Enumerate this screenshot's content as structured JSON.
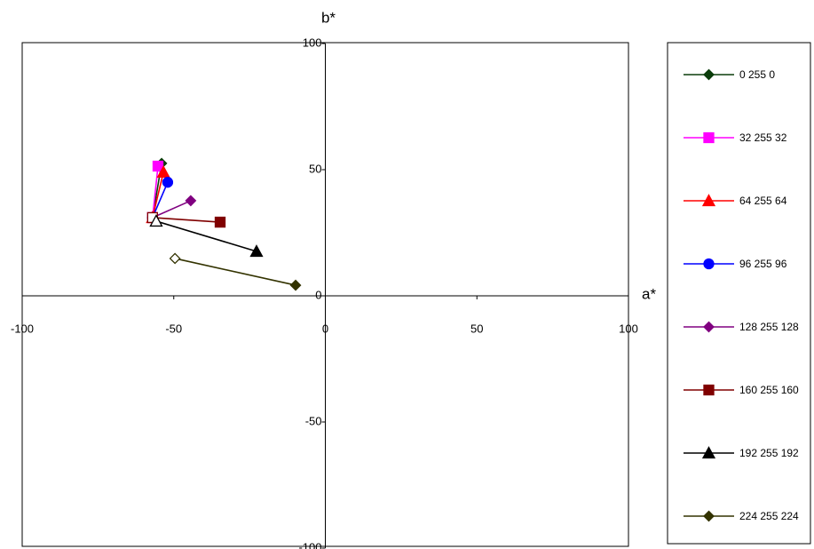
{
  "chart_data": {
    "type": "line",
    "x_label": "a*",
    "y_label": "b*",
    "xlim": [
      -100,
      100
    ],
    "ylim": [
      -100,
      100
    ],
    "xticks": [
      -100,
      -50,
      0,
      50,
      100
    ],
    "yticks": [
      -100,
      -50,
      0,
      50,
      100
    ],
    "grid": false,
    "legend": "right",
    "series": [
      {
        "name": "0 255 0",
        "color": "#0b3d0b",
        "marker": "diamond",
        "x": [
          -57,
          -54
        ],
        "values": [
          31,
          52.5
        ]
      },
      {
        "name": "32 255 32",
        "color": "#ff00ff",
        "marker": "square",
        "x": [
          -57,
          -55.2
        ],
        "values": [
          31,
          51.4
        ]
      },
      {
        "name": "64 255 64",
        "color": "#ff0000",
        "marker": "triangle",
        "x": [
          -57,
          -53.4
        ],
        "values": [
          31,
          49
        ]
      },
      {
        "name": "96 255 96",
        "color": "#0000ff",
        "marker": "circle",
        "x": [
          -57,
          -52
        ],
        "values": [
          31,
          45
        ]
      },
      {
        "name": "128 255 128",
        "color": "#800080",
        "marker": "diamond",
        "x": [
          -57,
          -44.4
        ],
        "values": [
          31,
          37.7
        ]
      },
      {
        "name": "160 255 160",
        "color": "#800000",
        "marker": "square",
        "x": [
          -57,
          -34.7
        ],
        "values": [
          31,
          29.2
        ]
      },
      {
        "name": "192 255 192",
        "color": "#000000",
        "marker": "triangle",
        "x": [
          -55.8,
          -22.7
        ],
        "values": [
          29.6,
          17.6
        ]
      },
      {
        "name": "224 255 224",
        "color": "#333300",
        "marker": "diamond",
        "x": [
          -49.6,
          -9.8
        ],
        "values": [
          14.8,
          4.2
        ]
      }
    ]
  }
}
